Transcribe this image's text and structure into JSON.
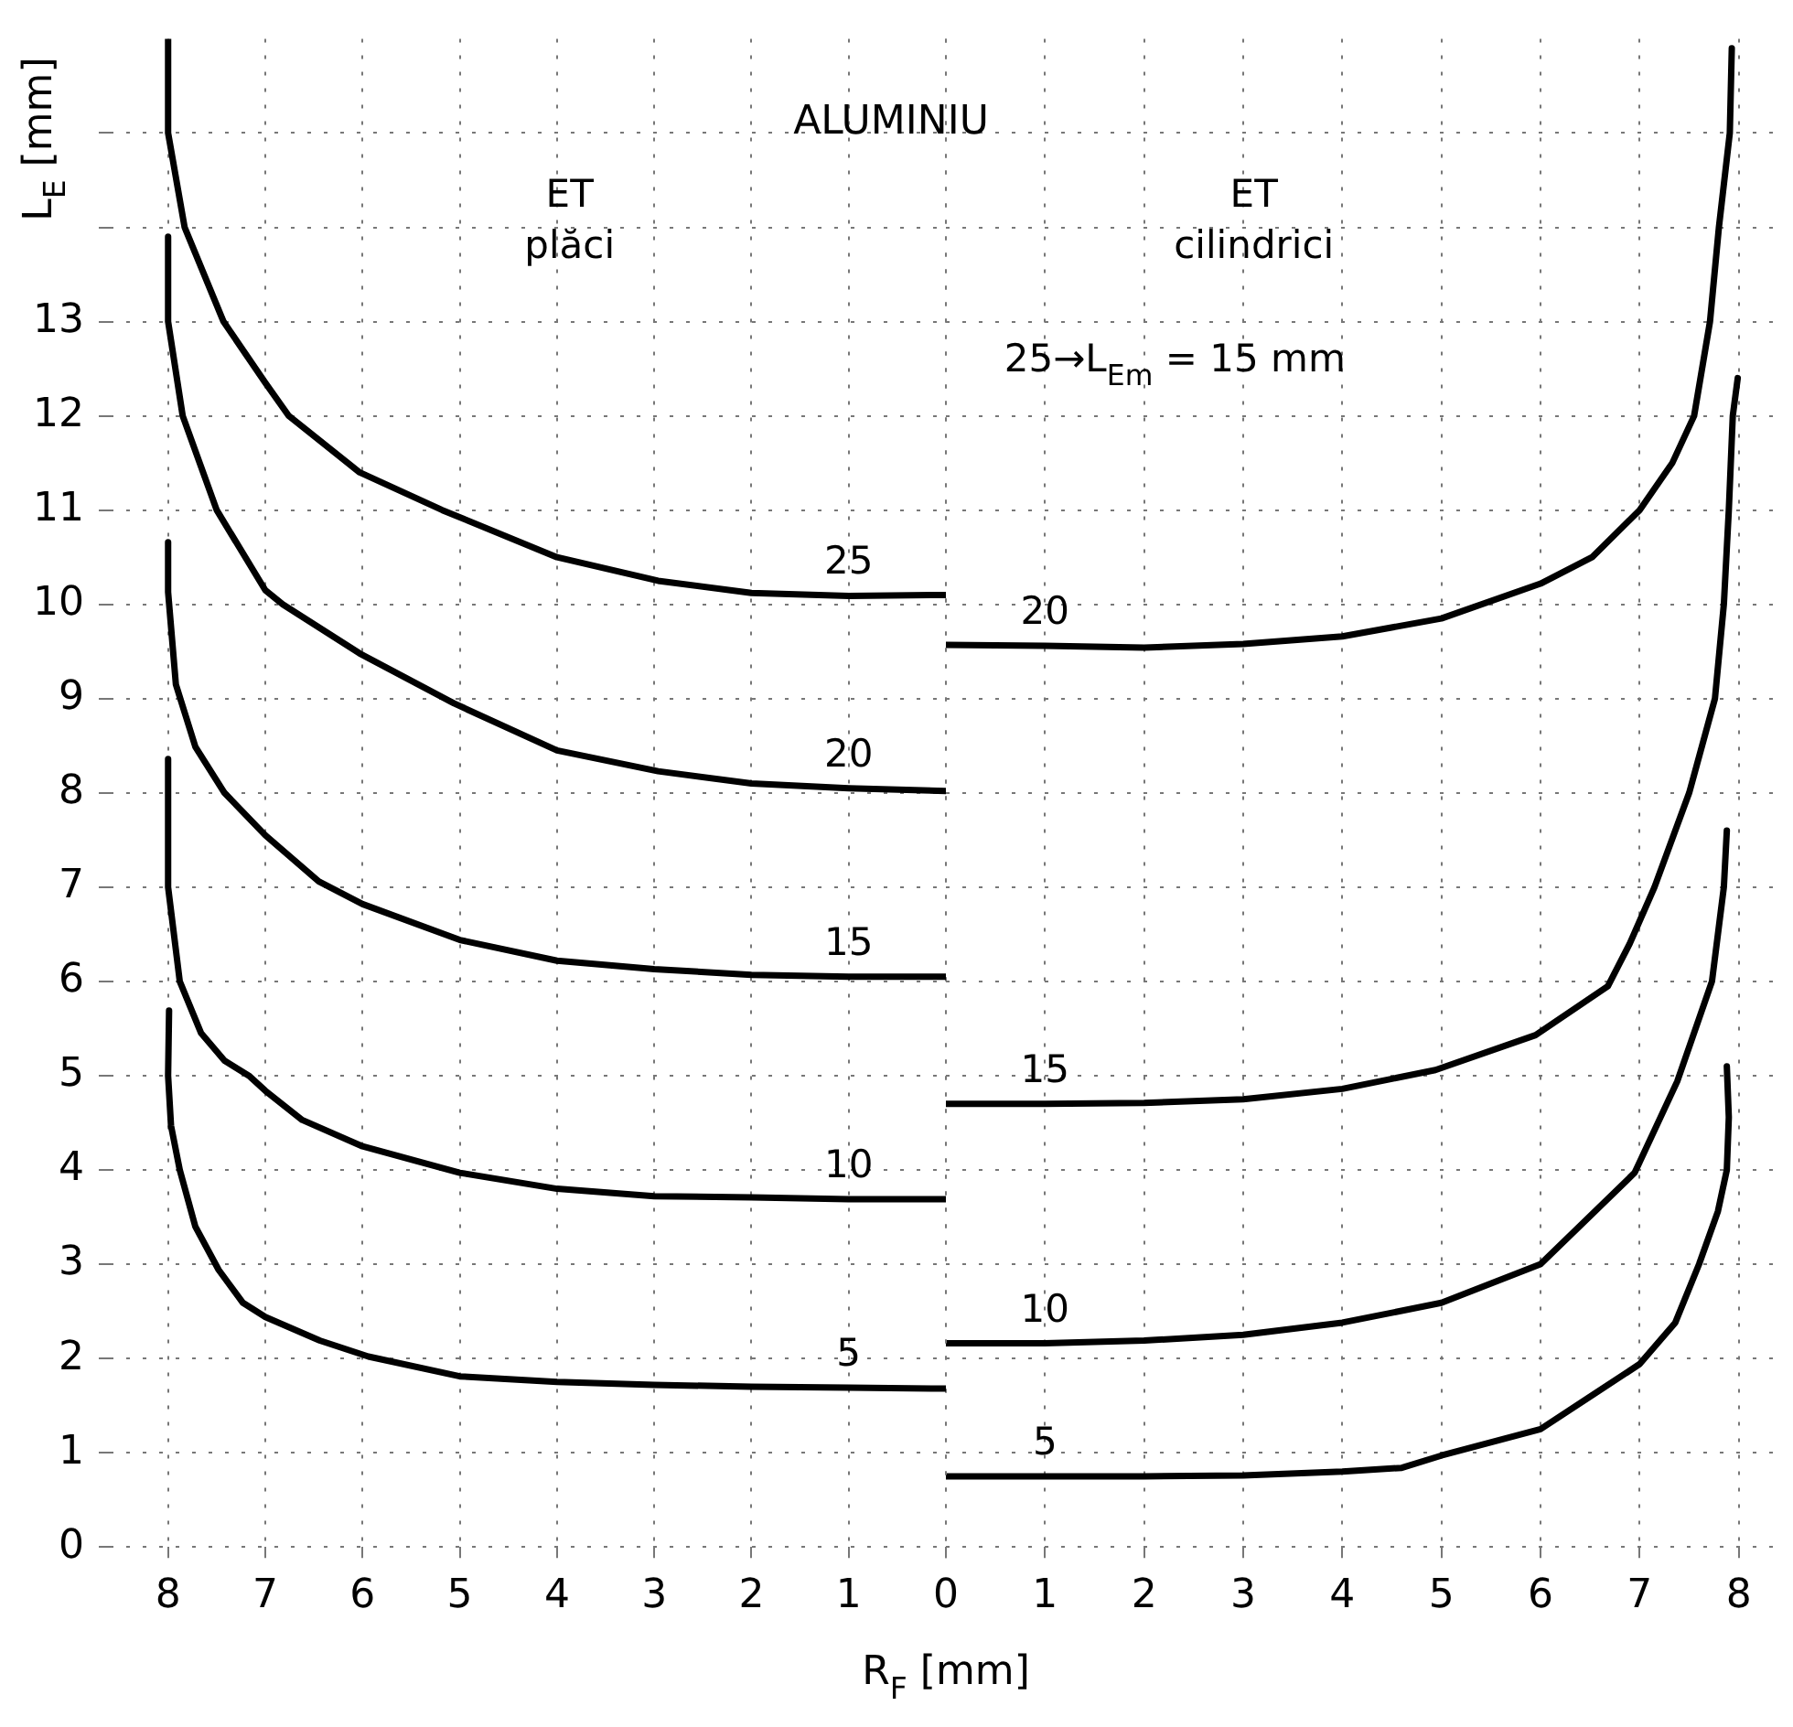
{
  "chart_data": [
    {
      "type": "line",
      "title": "ALUMINIU",
      "xlabel": "R$_{F}$ [mm]",
      "ylabel": "L$_{E}$ [mm]",
      "xlim": [
        8.6,
        0
      ],
      "xticks": [
        8,
        7,
        6,
        5,
        4,
        3,
        2,
        1,
        {
          "value": 0,
          "label": null
        }
      ],
      "ylim": [
        0,
        16
      ],
      "yticks": [
        0,
        1,
        2,
        3,
        4,
        5,
        6,
        7,
        8,
        9,
        10,
        11,
        12,
        13,
        {
          "value": 14,
          "label": null
        },
        {
          "value": 15,
          "label": null
        }
      ],
      "grid": true,
      "legend": false,
      "marker": "none",
      "line_style": "solid",
      "annotations": [
        "ET\nplăci"
      ],
      "series": [
        {
          "name": "25",
          "color": "#000000",
          "x": [
            8,
            8,
            7.83,
            7.43,
            7,
            6.76,
            6.03,
            5.18,
            4,
            2.96,
            2,
            1,
            0
          ],
          "values": [
            16,
            15,
            14,
            13,
            12.35,
            12,
            11.4,
            11,
            10.5,
            10.25,
            10.12,
            10.09,
            10.1
          ]
        },
        {
          "name": "20",
          "color": "#000000",
          "x": [
            8,
            8,
            7.85,
            7.5,
            7,
            6.82,
            6.03,
            5.06,
            4,
            2.96,
            2,
            1,
            0
          ],
          "values": [
            13.9,
            13,
            12,
            11,
            10.15,
            10,
            9.48,
            8.95,
            8.45,
            8.23,
            8.1,
            8.05,
            8.02
          ]
        },
        {
          "name": "15",
          "color": "#000000",
          "x": [
            8,
            8,
            7.92,
            7.72,
            7.42,
            7,
            6.45,
            6,
            5,
            4,
            3,
            2,
            1,
            0
          ],
          "values": [
            10.66,
            10.13,
            9.15,
            8.49,
            8,
            7.55,
            7.06,
            6.82,
            6.44,
            6.22,
            6.13,
            6.07,
            6.05,
            6.05
          ]
        },
        {
          "name": "10",
          "color": "#000000",
          "x": [
            8,
            8,
            7.88,
            7.66,
            7.42,
            7.17,
            7,
            6.62,
            6,
            5,
            4,
            3,
            2,
            1,
            0
          ],
          "values": [
            8.36,
            7,
            6,
            5.45,
            5.16,
            5,
            4.84,
            4.53,
            4.25,
            3.97,
            3.8,
            3.72,
            3.71,
            3.69,
            3.69
          ]
        },
        {
          "name": "5",
          "color": "#000000",
          "x": [
            7.99,
            8,
            7.97,
            7.88,
            7.72,
            7.48,
            7.23,
            7,
            6.44,
            5.94,
            5,
            4,
            3,
            2,
            1,
            0
          ],
          "values": [
            5.69,
            5,
            4.47,
            4,
            3.4,
            2.94,
            2.59,
            2.44,
            2.19,
            2.02,
            1.81,
            1.75,
            1.72,
            1.7,
            1.69,
            1.68
          ]
        }
      ]
    },
    {
      "type": "line",
      "xlim": [
        0,
        8.4
      ],
      "xticks": [
        0,
        1,
        2,
        3,
        4,
        5,
        6,
        7,
        8
      ],
      "ylim": [
        0,
        16
      ],
      "yticks": [
        0,
        1,
        2,
        3,
        4,
        5,
        6,
        7,
        8,
        9,
        10,
        11,
        12,
        13,
        14,
        15
      ],
      "tick_labels": "x",
      "grid": true,
      "legend": false,
      "marker": "none",
      "line_style": "solid",
      "annotations": [
        "ET\ncilindrici",
        "25→L$_{Em}$ = 15 mm"
      ],
      "series": [
        {
          "name": "20",
          "color": "#000000",
          "x": [
            0,
            1,
            2,
            3,
            4,
            5,
            6,
            6.52,
            7,
            7.33,
            7.55,
            7.71,
            7.8,
            7.91,
            7.93
          ],
          "values": [
            9.57,
            9.56,
            9.54,
            9.58,
            9.66,
            9.85,
            10.22,
            10.5,
            11,
            11.5,
            12,
            13,
            14,
            15,
            15.9
          ]
        },
        {
          "name": "15",
          "color": "#000000",
          "x": [
            0,
            1,
            2,
            3,
            4,
            4.94,
            5.95,
            6.68,
            6.9,
            7.15,
            7.5,
            7.76,
            7.85,
            7.9,
            7.94,
            7.99
          ],
          "values": [
            4.7,
            4.7,
            4.71,
            4.75,
            4.86,
            5.06,
            5.43,
            5.95,
            6.4,
            7,
            8,
            9,
            10,
            11,
            12,
            12.4
          ]
        },
        {
          "name": "10",
          "color": "#000000",
          "x": [
            0,
            1,
            2,
            3,
            4,
            5,
            6,
            6.95,
            7.38,
            7.73,
            7.85,
            7.88
          ],
          "values": [
            2.16,
            2.16,
            2.19,
            2.25,
            2.38,
            2.59,
            3,
            3.97,
            4.94,
            6,
            7,
            7.6
          ]
        },
        {
          "name": "5",
          "color": "#000000",
          "x": [
            0,
            1,
            2,
            3,
            4,
            4.6,
            5,
            6,
            7,
            7.36,
            7.6,
            7.79,
            7.88,
            7.9,
            7.88
          ],
          "values": [
            0.75,
            0.75,
            0.75,
            0.76,
            0.8,
            0.84,
            0.97,
            1.25,
            1.94,
            2.38,
            3,
            3.56,
            4,
            4.56,
            5.1
          ]
        }
      ]
    }
  ]
}
